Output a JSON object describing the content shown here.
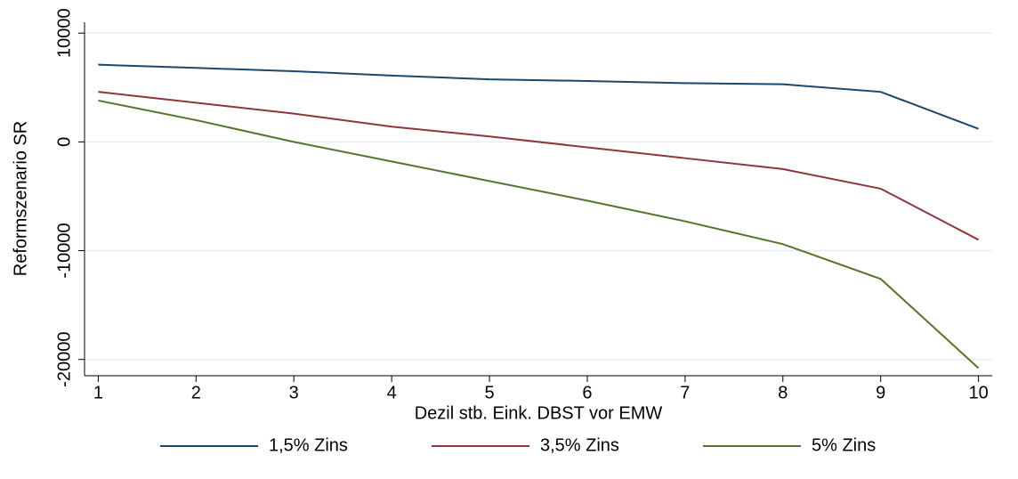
{
  "chart_data": {
    "type": "line",
    "x_label": "Dezil stb. Eink. DBST vor EMW",
    "y_label": "Reformszenario  SR",
    "x": [
      1,
      2,
      3,
      4,
      5,
      6,
      7,
      8,
      9,
      10
    ],
    "series": [
      {
        "name": "1,5% Zins",
        "color": "#1a476f",
        "values": [
          7100,
          6800,
          6500,
          6100,
          5750,
          5600,
          5400,
          5300,
          4600,
          1200
        ]
      },
      {
        "name": "3,5% Zins",
        "color": "#90353b",
        "values": [
          4600,
          3600,
          2600,
          1400,
          500,
          -500,
          -1500,
          -2500,
          -4300,
          -9000
        ]
      },
      {
        "name": "5% Zins",
        "color": "#55752f",
        "values": [
          3800,
          2000,
          0,
          -1800,
          -3600,
          -5400,
          -7300,
          -9400,
          -12600,
          -20800
        ]
      }
    ],
    "xlim": [
      0.86,
      10.14
    ],
    "xticks": [
      1,
      2,
      3,
      4,
      5,
      6,
      7,
      8,
      9,
      10
    ],
    "ylim": [
      -21500,
      11000
    ],
    "yticks": [
      -20000,
      -10000,
      0,
      10000
    ],
    "grid": true
  }
}
